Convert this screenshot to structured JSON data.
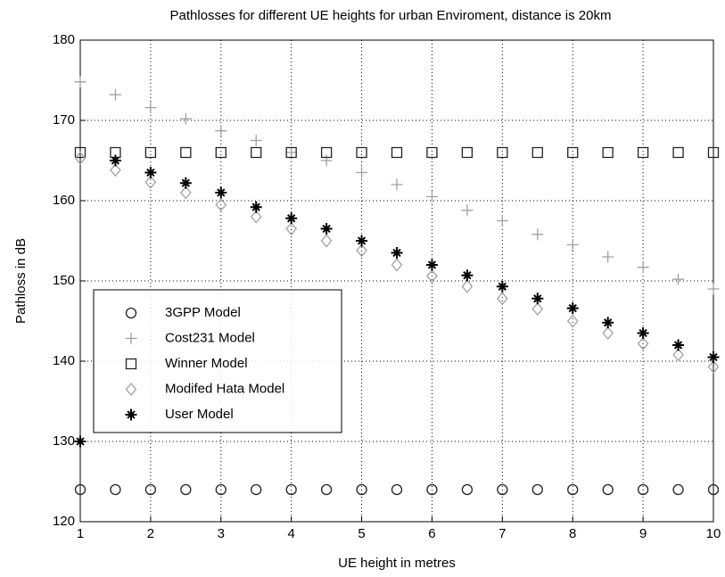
{
  "chart_data": {
    "type": "scatter",
    "title": "Pathlosses for different UE heights for urban Enviroment, distance is 20km",
    "xlabel": "UE height in metres",
    "ylabel": "Pathloss in dB",
    "x": [
      1,
      1.5,
      2,
      2.5,
      3,
      3.5,
      4,
      4.5,
      5,
      5.5,
      6,
      6.5,
      7,
      7.5,
      8,
      8.5,
      9,
      9.5,
      10
    ],
    "xlim": [
      1,
      10
    ],
    "ylim": [
      120,
      180
    ],
    "xticks": [
      1,
      2,
      3,
      4,
      5,
      6,
      7,
      8,
      9,
      10
    ],
    "yticks": [
      120,
      130,
      140,
      150,
      160,
      170,
      180
    ],
    "grid": true,
    "legend": "lower-left",
    "series": [
      {
        "name": "3GPP Model",
        "marker": "circle",
        "color": "#222222",
        "values": [
          124,
          124,
          124,
          124,
          124,
          124,
          124,
          124,
          124,
          124,
          124,
          124,
          124,
          124,
          124,
          124,
          124,
          124,
          124
        ]
      },
      {
        "name": "Cost231 Model",
        "marker": "plus",
        "color": "#a0a0a0",
        "values": [
          174.8,
          173.2,
          171.6,
          170.2,
          168.7,
          167.5,
          166,
          165,
          163.5,
          162,
          160.5,
          158.8,
          157.5,
          155.8,
          154.5,
          153,
          151.7,
          150.2,
          149
        ]
      },
      {
        "name": "Winner Model",
        "marker": "square",
        "color": "#222222",
        "values": [
          166,
          166,
          166,
          166,
          166,
          166,
          166,
          166,
          166,
          166,
          166,
          166,
          166,
          166,
          166,
          166,
          166,
          166,
          166
        ]
      },
      {
        "name": "Modifed Hata Model",
        "marker": "diamond",
        "color": "#a0a0a0",
        "values": [
          165.3,
          163.8,
          162.3,
          161,
          159.5,
          158,
          156.5,
          155,
          153.8,
          152,
          150.6,
          149.3,
          147.8,
          146.5,
          145,
          143.5,
          142.2,
          140.8,
          139.3
        ]
      },
      {
        "name": "User Model",
        "marker": "star",
        "color": "#000000",
        "values": [
          130,
          165,
          163.5,
          162.2,
          161,
          159.2,
          157.8,
          156.5,
          155,
          153.5,
          152,
          150.7,
          149.3,
          147.8,
          146.6,
          144.8,
          143.5,
          142,
          140.5
        ]
      }
    ]
  }
}
